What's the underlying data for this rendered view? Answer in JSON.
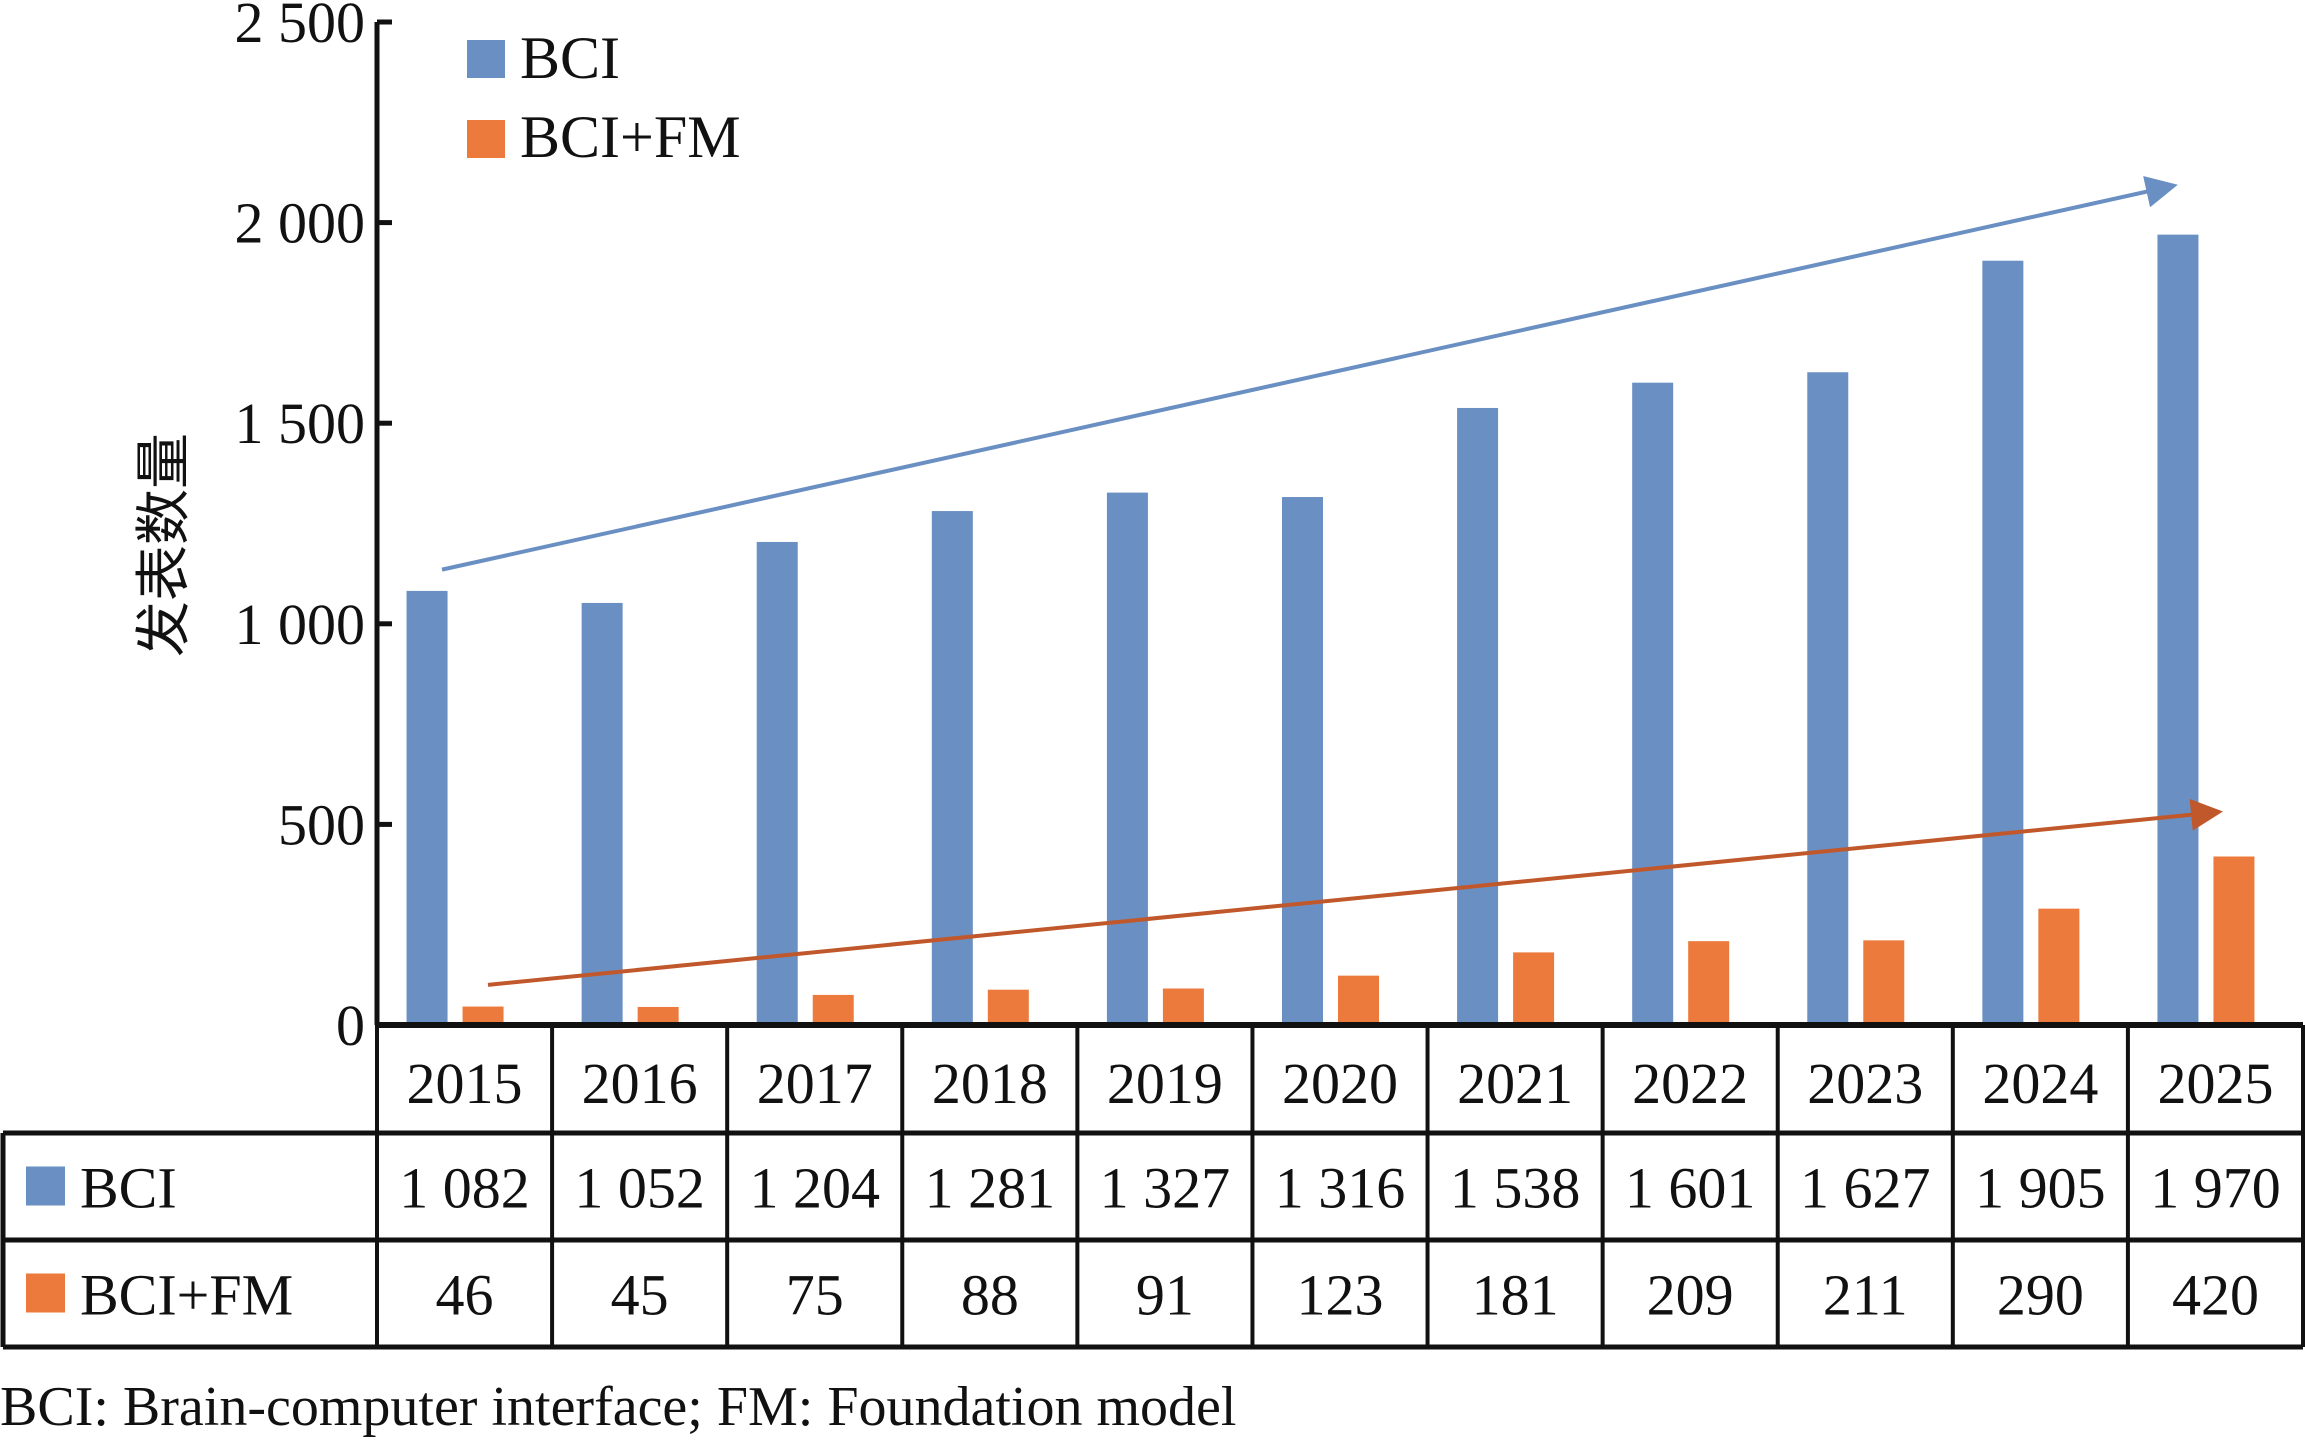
{
  "chart_data": {
    "type": "bar",
    "title": "",
    "xlabel": "",
    "ylabel": "发表数量",
    "ylim": [
      0,
      2500
    ],
    "yticks": [
      0,
      500,
      1000,
      1500,
      2000,
      2500
    ],
    "ytick_labels": [
      "0",
      "500",
      "1 000",
      "1 500",
      "2 000",
      "2 500"
    ],
    "grid": false,
    "legend_position": "top-left",
    "categories": [
      "2015",
      "2016",
      "2017",
      "2018",
      "2019",
      "2020",
      "2021",
      "2022",
      "2023",
      "2024",
      "2025"
    ],
    "series": [
      {
        "name": "BCI",
        "color": "#6a8fc2",
        "values": [
          1082,
          1052,
          1204,
          1281,
          1327,
          1316,
          1538,
          1601,
          1627,
          1905,
          1970
        ],
        "value_labels": [
          "1 082",
          "1 052",
          "1 204",
          "1 281",
          "1 327",
          "1 316",
          "1 538",
          "1 601",
          "1 627",
          "1 905",
          "1 970"
        ]
      },
      {
        "name": "BCI+FM",
        "color": "#ec7a3c",
        "values": [
          46,
          45,
          75,
          88,
          91,
          123,
          181,
          209,
          211,
          290,
          420
        ],
        "value_labels": [
          "46",
          "45",
          "75",
          "88",
          "91",
          "123",
          "181",
          "209",
          "211",
          "290",
          "420"
        ]
      }
    ],
    "annotations": [
      {
        "type": "trend-arrow",
        "series": "BCI",
        "color": "#6a8fc2",
        "from": {
          "x": "2015",
          "y": 1135
        },
        "to": {
          "x": "2025+",
          "y": 2100
        }
      },
      {
        "type": "trend-arrow",
        "series": "BCI+FM",
        "color": "#c0582c",
        "from": {
          "x": "2015",
          "y": 100
        },
        "to": {
          "x": "2025+",
          "y": 540
        }
      }
    ],
    "data_table": true,
    "caption": "BCI: Brain-computer interface; FM: Foundation model"
  }
}
